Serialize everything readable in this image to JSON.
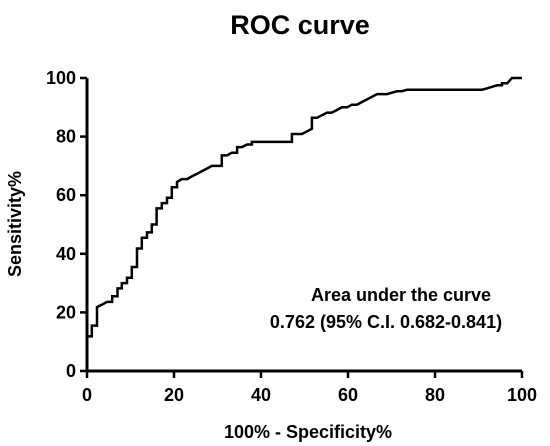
{
  "chart_data": {
    "type": "line",
    "title": "ROC curve",
    "xlabel": "100% - Specificity%",
    "ylabel": "Sensitivity%",
    "xlim": [
      0,
      100
    ],
    "ylim": [
      0,
      100
    ],
    "xticks": [
      0,
      20,
      40,
      60,
      80,
      100
    ],
    "yticks": [
      0,
      20,
      40,
      60,
      80,
      100
    ],
    "grid": false,
    "annotations": [
      "Area under the curve",
      "0.762 (95% C.I. 0.682-0.841)"
    ],
    "series": [
      {
        "color": "#000000",
        "x": [
          0,
          0,
          1.1,
          1.1,
          2.3,
          2.3,
          3.5,
          4.6,
          5.8,
          5.8,
          7,
          7,
          8,
          8,
          9.2,
          9.2,
          10.3,
          10.3,
          11.5,
          11.5,
          12.6,
          12.6,
          13.8,
          13.8,
          14.9,
          14.9,
          16,
          16,
          17.2,
          17.2,
          18.4,
          18.4,
          19.5,
          19.5,
          20.7,
          20.7,
          21.8,
          23,
          24.1,
          25.3,
          26.4,
          27.6,
          28.7,
          29.9,
          31,
          31,
          32.2,
          33.3,
          34.5,
          34.5,
          35.6,
          36.8,
          37.9,
          37.9,
          39.1,
          40.2,
          41.4,
          42.5,
          43.7,
          44.8,
          46,
          47.1,
          47.1,
          48.3,
          49.4,
          50.6,
          51.7,
          51.7,
          52.9,
          54,
          55.2,
          56.3,
          57.5,
          58.6,
          59.8,
          60.9,
          62.1,
          63.2,
          64.4,
          65.5,
          66.7,
          67.8,
          69,
          70.1,
          71.3,
          72.4,
          73.6,
          74.7,
          75.9,
          77,
          78.2,
          79.3,
          80.5,
          81.6,
          82.8,
          83.9,
          85.1,
          86.2,
          87.4,
          88.5,
          89.7,
          90.8,
          92,
          93.1,
          94.3,
          95.4,
          95.4,
          96.6,
          97.7,
          98.9,
          100
        ],
        "y": [
          0,
          11.8,
          11.8,
          15.5,
          15.5,
          21.8,
          22.7,
          23.6,
          23.6,
          25.5,
          25.5,
          28.2,
          28.2,
          30,
          30,
          31.8,
          31.8,
          35.5,
          35.5,
          41.8,
          41.8,
          45.5,
          45.5,
          47.3,
          47.3,
          50,
          50,
          55.5,
          55.5,
          57.3,
          57.3,
          59.1,
          59.1,
          62.7,
          62.7,
          64.5,
          65.5,
          65.5,
          66.4,
          67.3,
          68.2,
          69.1,
          70,
          70,
          70,
          73.6,
          73.6,
          74.5,
          74.5,
          76.4,
          76.4,
          77.3,
          77.3,
          78.2,
          78.2,
          78.2,
          78.2,
          78.2,
          78.2,
          78.2,
          78.2,
          78.2,
          80.9,
          80.9,
          80.9,
          81.8,
          82.7,
          86.4,
          86.4,
          87.3,
          88.2,
          88.2,
          89.1,
          90,
          90,
          90.9,
          90.9,
          91.8,
          92.7,
          93.6,
          94.5,
          94.5,
          94.5,
          95,
          95.5,
          95.5,
          96,
          96,
          96,
          96,
          96,
          96,
          96,
          96,
          96,
          96,
          96,
          96,
          96,
          96,
          96,
          96,
          96.5,
          97,
          97.5,
          97.5,
          98.2,
          98.2,
          100,
          100,
          100
        ]
      }
    ]
  }
}
